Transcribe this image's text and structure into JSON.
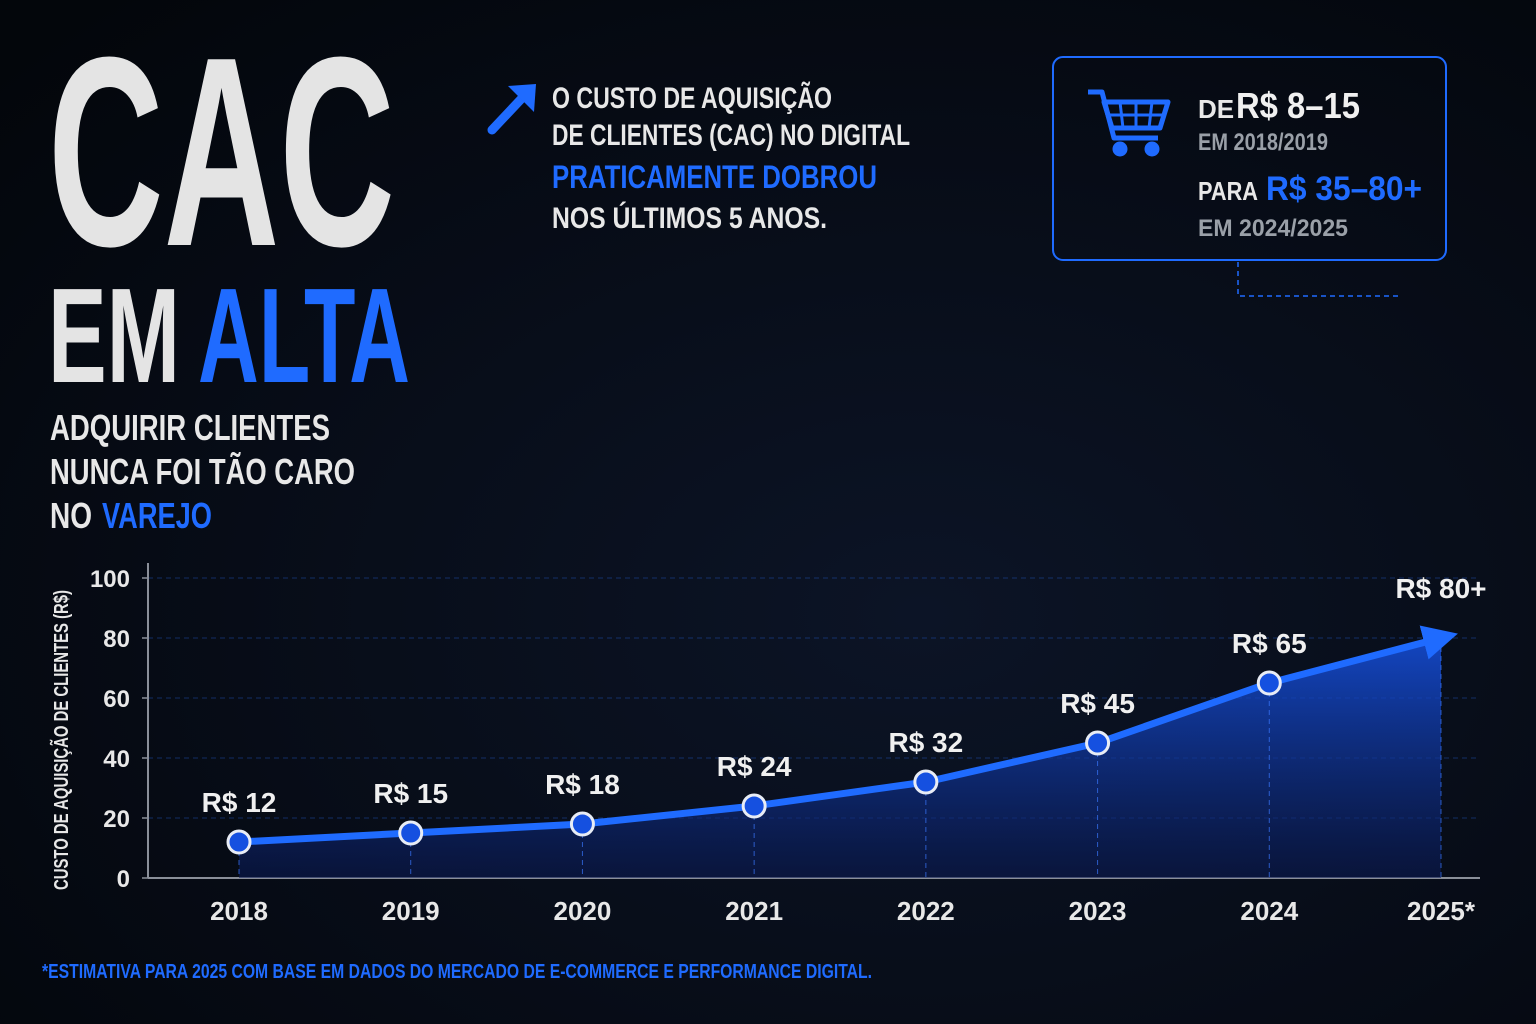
{
  "header": {
    "title": "CAC",
    "title_line2": "EM",
    "title_highlight": "ALTA",
    "subtitle": [
      "ADQUIRIR CLIENTES",
      "NUNCA FOI TÃO CARO",
      "NO"
    ],
    "subtitle_highlight": "VAREJO"
  },
  "callout": {
    "lines": [
      "O CUSTO DE AQUISIÇÃO",
      "DE CLIENTES (CAC) NO DIGITAL"
    ],
    "highlight": "PRATICAMENTE DOBROU",
    "last_line": "NOS ÚLTIMOS 5 ANOS."
  },
  "box": {
    "from_prefix": "DE",
    "from_value": "R$ 8–15",
    "from_period": "EM 2018/2019",
    "to_prefix": "PARA",
    "to_value": "R$ 35–80+",
    "to_period": "EM 2024/2025"
  },
  "chart_data": {
    "type": "line",
    "y_label": "CUSTO DE AQUISIÇÃO DE CLIENTES (R$)",
    "categories": [
      "2018",
      "2019",
      "2020",
      "2021",
      "2022",
      "2023",
      "2024",
      "2025*"
    ],
    "series": [
      {
        "name": "CAC",
        "color": "#1f6bff",
        "values": [
          12,
          15,
          18,
          24,
          32,
          45,
          65,
          80
        ],
        "value_labels": [
          "R$ 12",
          "R$ 15",
          "R$ 18",
          "R$ 24",
          "R$ 32",
          "R$ 45",
          "R$ 65",
          "R$ 80+"
        ]
      }
    ],
    "ylim": [
      0,
      105
    ],
    "yticks": [
      0,
      20,
      40,
      60,
      80,
      100
    ],
    "grid": true
  },
  "footnote": "*ESTIMATIVA PARA 2025 COM BASE EM DADOS DO MERCADO DE E-COMMERCE E PERFORMANCE DIGITAL."
}
